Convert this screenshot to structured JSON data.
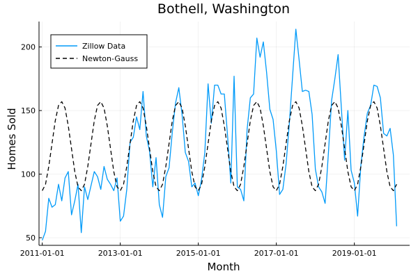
{
  "chart_data": {
    "type": "line",
    "title": "Bothell, Washington",
    "xlabel": "Month",
    "ylabel": "Homes Sold",
    "xlim": [
      "2010-12-01",
      "2020-06-01"
    ],
    "ylim": [
      44,
      220
    ],
    "x_ticks": [
      "2011-01-01",
      "2013-01-01",
      "2015-01-01",
      "2017-01-01",
      "2019-01-01"
    ],
    "y_ticks": [
      50,
      100,
      150,
      200
    ],
    "grid": true,
    "legend": "top-left",
    "start_month": "2011-01-01",
    "series": [
      {
        "name": "Zillow Data",
        "color": "#009af9",
        "style": "solid",
        "values": [
          48,
          55,
          81,
          74,
          76,
          92,
          79,
          97,
          102,
          68,
          79,
          92,
          54,
          90,
          80,
          91,
          102,
          98,
          88,
          106,
          96,
          92,
          87,
          97,
          63,
          67,
          88,
          125,
          129,
          145,
          135,
          165,
          130,
          118,
          90,
          113,
          76,
          66,
          98,
          105,
          133,
          156,
          168,
          147,
          117,
          110,
          90,
          93,
          83,
          96,
          117,
          171,
          140,
          170,
          170,
          163,
          163,
          130,
          93,
          177,
          90,
          88,
          79,
          135,
          160,
          163,
          207,
          192,
          204,
          180,
          151,
          143,
          118,
          84,
          88,
          108,
          140,
          177,
          214,
          190,
          165,
          166,
          165,
          147,
          104,
          90,
          86,
          77,
          116,
          158,
          175,
          194,
          152,
          111,
          150,
          103,
          93,
          67,
          107,
          130,
          148,
          154,
          170,
          169,
          160,
          132,
          130,
          136,
          115,
          59
        ]
      },
      {
        "name": "Newton-Gauss",
        "color": "#000000",
        "style": "dashed",
        "values": [
          87,
          92,
          106,
          124,
          142,
          154,
          157,
          152,
          138,
          120,
          102,
          90
        ]
      }
    ]
  }
}
